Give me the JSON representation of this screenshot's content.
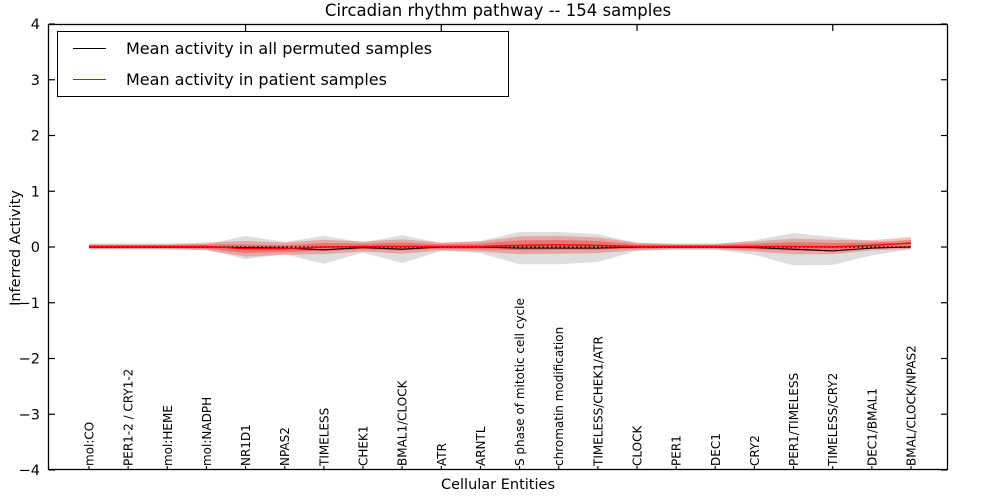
{
  "chart_data": {
    "type": "line",
    "title": "Circadian rhythm pathway -- 154 samples",
    "xlabel": "Cellular Entities",
    "ylabel": "Inferred Activity",
    "ylim": [
      -4,
      4
    ],
    "yticks": [
      4,
      3,
      2,
      1,
      0,
      -1,
      -2,
      -3,
      -4
    ],
    "ytick_labels": [
      "4",
      "3",
      "2",
      "1",
      "0",
      "−1",
      "−2",
      "−3",
      "−4"
    ],
    "grid": false,
    "legend_position": "upper left",
    "legend": {
      "entries": [
        {
          "label": "Mean activity in all permuted samples",
          "color": "#000000"
        },
        {
          "label": "Mean activity in patient samples",
          "color": "#ff0000"
        }
      ]
    },
    "categories": [
      "mol:CO",
      "PER1-2 / CRY1-2",
      "mol:HEME",
      "mol:NADPH",
      "NR1D1",
      "NPAS2",
      "TIMELESS",
      "CHEK1",
      "BMAL1/CLOCK",
      "ATR",
      "ARNTL",
      "S phase of mitotic cell cycle",
      "chromatin modification",
      "TIMELESS/CHEK1/ATR",
      "CLOCK",
      "PER1",
      "DEC1",
      "CRY2",
      "PER1/TIMELESS",
      "TIMELESS/CRY2",
      "DEC1/BMAL1",
      "BMAL/CLOCK/NPAS2"
    ],
    "top_tick_category_indices": [
      4,
      9,
      14,
      19
    ],
    "series": [
      {
        "name": "Mean activity in all permuted samples",
        "color": "#000000",
        "band_color": "rgba(0,0,0,0.13)",
        "mean": [
          0,
          0,
          0,
          0,
          -0.01,
          -0.02,
          -0.05,
          -0.01,
          -0.04,
          0,
          0,
          -0.02,
          -0.02,
          -0.02,
          0,
          0,
          0,
          -0.01,
          -0.04,
          -0.07,
          -0.02,
          0
        ],
        "band_half_width": [
          0.04,
          0.04,
          0.04,
          0.05,
          0.21,
          0.11,
          0.25,
          0.09,
          0.25,
          0.07,
          0.11,
          0.29,
          0.29,
          0.25,
          0.07,
          0.05,
          0.05,
          0.13,
          0.29,
          0.25,
          0.13,
          0.04
        ]
      },
      {
        "name": "Mean activity in patient samples",
        "color": "#ff0000",
        "band_color": "rgba(255,0,0,0.25)",
        "inner_band_color": "rgba(255,0,0,0.30)",
        "inner_band_scale": 0.55,
        "mean": [
          0.01,
          0.01,
          0.01,
          0.01,
          -0.03,
          -0.03,
          0,
          0.01,
          0.01,
          0.01,
          0.01,
          0.03,
          0.04,
          0.03,
          0.01,
          0.01,
          0.01,
          0.01,
          0.01,
          0,
          0.03,
          0.07
        ],
        "band_half_width": [
          0.05,
          0.05,
          0.05,
          0.07,
          0.14,
          0.11,
          0.13,
          0.09,
          0.13,
          0.07,
          0.09,
          0.16,
          0.16,
          0.14,
          0.07,
          0.05,
          0.05,
          0.09,
          0.14,
          0.13,
          0.09,
          0.11
        ]
      }
    ],
    "zero_line": {
      "value": 0,
      "style": "dotted",
      "color": "#000000"
    }
  }
}
